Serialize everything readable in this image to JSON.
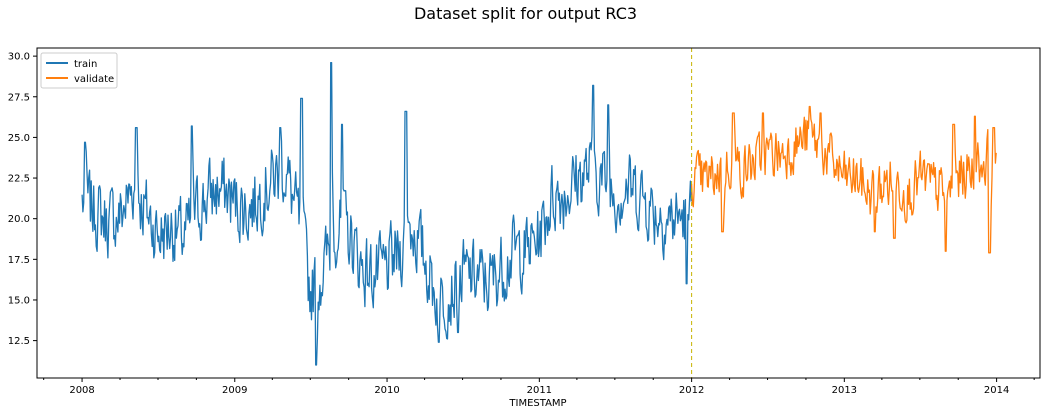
{
  "chart_data": {
    "type": "line",
    "title": "Dataset split for output RC3",
    "xlabel": "TIMESTAMP",
    "ylabel": "",
    "xlim": [
      "2007-09-15",
      "2014-04-15"
    ],
    "ylim": [
      10.2,
      30.5
    ],
    "x_ticks": [
      "2008",
      "2009",
      "2010",
      "2011",
      "2012",
      "2013",
      "2014"
    ],
    "y_ticks": [
      "12.5",
      "15.0",
      "17.5",
      "20.0",
      "22.5",
      "25.0",
      "27.5",
      "30.0"
    ],
    "grid": false,
    "legend_position": "top-left",
    "split_line": {
      "date": "2012-01-01",
      "color": "#c8b400",
      "style": "dashed"
    },
    "series": [
      {
        "name": "train",
        "color": "#1f77b4",
        "x_start": "2008-01-01",
        "x_end": "2011-12-31",
        "points": [
          [
            "2008-01-01",
            21.1
          ],
          [
            "2008-02-01",
            20.5
          ],
          [
            "2008-03-01",
            19.8
          ],
          [
            "2008-04-01",
            20.2
          ],
          [
            "2008-05-01",
            22.0
          ],
          [
            "2008-06-01",
            20.5
          ],
          [
            "2008-07-01",
            19.0
          ],
          [
            "2008-08-01",
            19.5
          ],
          [
            "2008-09-01",
            18.8
          ],
          [
            "2008-10-01",
            20.5
          ],
          [
            "2008-11-01",
            21.5
          ],
          [
            "2008-12-01",
            21.8
          ],
          [
            "2009-01-01",
            21.0
          ],
          [
            "2009-02-01",
            20.5
          ],
          [
            "2009-03-01",
            21.5
          ],
          [
            "2009-04-01",
            22.5
          ],
          [
            "2009-05-01",
            23.0
          ],
          [
            "2009-06-01",
            20.0
          ],
          [
            "2009-07-01",
            15.5
          ],
          [
            "2009-08-01",
            17.0
          ],
          [
            "2009-09-01",
            19.5
          ],
          [
            "2009-10-01",
            19.0
          ],
          [
            "2009-11-01",
            17.0
          ],
          [
            "2009-12-01",
            16.5
          ],
          [
            "2010-01-01",
            17.0
          ],
          [
            "2010-02-01",
            18.0
          ],
          [
            "2010-03-01",
            19.5
          ],
          [
            "2010-04-01",
            17.5
          ],
          [
            "2010-05-01",
            15.0
          ],
          [
            "2010-06-01",
            15.5
          ],
          [
            "2010-07-01",
            16.5
          ],
          [
            "2010-08-01",
            16.5
          ],
          [
            "2010-09-01",
            16.0
          ],
          [
            "2010-10-01",
            17.0
          ],
          [
            "2010-11-01",
            18.0
          ],
          [
            "2010-12-01",
            18.0
          ],
          [
            "2011-01-01",
            19.0
          ],
          [
            "2011-02-01",
            21.5
          ],
          [
            "2011-03-01",
            21.5
          ],
          [
            "2011-04-01",
            22.5
          ],
          [
            "2011-05-01",
            23.0
          ],
          [
            "2011-06-01",
            22.5
          ],
          [
            "2011-07-01",
            21.5
          ],
          [
            "2011-08-01",
            22.0
          ],
          [
            "2011-09-01",
            21.5
          ],
          [
            "2011-10-01",
            20.5
          ],
          [
            "2011-11-01",
            20.0
          ],
          [
            "2011-12-01",
            20.0
          ],
          [
            "2011-12-31",
            20.5
          ]
        ],
        "extremes": [
          [
            "2008-01-08",
            24.7
          ],
          [
            "2008-05-10",
            25.6
          ],
          [
            "2008-09-20",
            25.7
          ],
          [
            "2009-04-20",
            25.6
          ],
          [
            "2009-06-10",
            27.4
          ],
          [
            "2009-07-15",
            11.0
          ],
          [
            "2009-08-20",
            29.6
          ],
          [
            "2009-09-15",
            25.8
          ],
          [
            "2010-02-15",
            26.6
          ],
          [
            "2010-05-05",
            12.4
          ],
          [
            "2010-06-20",
            13.0
          ],
          [
            "2011-05-10",
            28.2
          ],
          [
            "2011-06-15",
            27.0
          ],
          [
            "2011-12-20",
            16.0
          ]
        ]
      },
      {
        "name": "validate",
        "color": "#ff7f0e",
        "x_start": "2012-01-01",
        "x_end": "2013-12-31",
        "points": [
          [
            "2012-01-01",
            22.5
          ],
          [
            "2012-02-01",
            22.3
          ],
          [
            "2012-03-01",
            22.8
          ],
          [
            "2012-04-01",
            23.5
          ],
          [
            "2012-05-01",
            23.0
          ],
          [
            "2012-06-01",
            23.5
          ],
          [
            "2012-07-01",
            24.0
          ],
          [
            "2012-08-01",
            24.0
          ],
          [
            "2012-09-01",
            24.5
          ],
          [
            "2012-10-01",
            25.0
          ],
          [
            "2012-11-01",
            24.5
          ],
          [
            "2012-12-01",
            23.5
          ],
          [
            "2013-01-01",
            22.5
          ],
          [
            "2013-02-01",
            22.5
          ],
          [
            "2013-03-01",
            21.5
          ],
          [
            "2013-04-01",
            22.0
          ],
          [
            "2013-05-01",
            22.5
          ],
          [
            "2013-06-01",
            21.5
          ],
          [
            "2013-07-01",
            22.5
          ],
          [
            "2013-08-01",
            22.0
          ],
          [
            "2013-09-01",
            21.5
          ],
          [
            "2013-10-01",
            22.5
          ],
          [
            "2013-11-01",
            23.0
          ],
          [
            "2013-12-01",
            23.5
          ],
          [
            "2013-12-31",
            24.5
          ]
        ],
        "extremes": [
          [
            "2012-04-10",
            26.5
          ],
          [
            "2012-06-20",
            26.5
          ],
          [
            "2012-10-10",
            26.9
          ],
          [
            "2012-11-05",
            26.5
          ],
          [
            "2012-03-15",
            19.2
          ],
          [
            "2013-03-15",
            19.2
          ],
          [
            "2013-05-01",
            18.8
          ],
          [
            "2013-09-01",
            18.0
          ],
          [
            "2013-09-20",
            25.8
          ],
          [
            "2013-11-10",
            26.3
          ],
          [
            "2013-12-15",
            17.9
          ],
          [
            "2013-12-25",
            25.6
          ]
        ]
      }
    ]
  }
}
